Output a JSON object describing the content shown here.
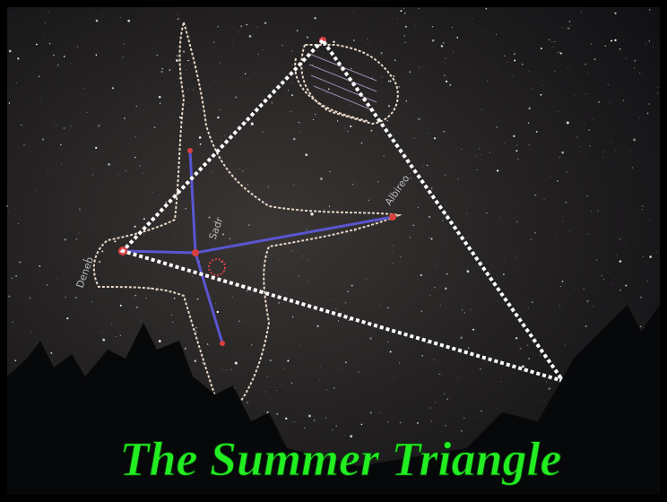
{
  "title": "The Summer Triangle",
  "labels": {
    "deneb": "Deneb",
    "sadr": "Sadr",
    "albireo": "Albireo"
  }
}
